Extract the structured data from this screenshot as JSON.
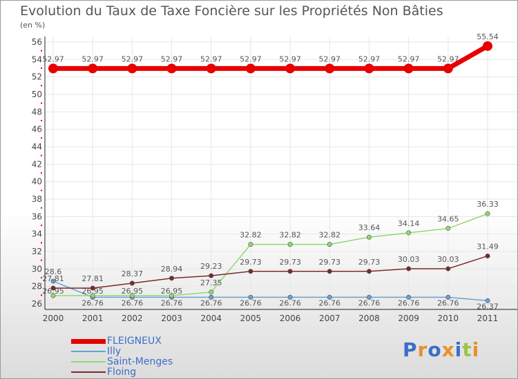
{
  "title": "Evolution du Taux de Taxe Foncière sur les Propriétés Non Bâties",
  "unit_label": "(en %)",
  "logo_text": "Proxiti",
  "chart_data": {
    "type": "line",
    "title": "Evolution du Taux de Taxe Foncière sur les Propriétés Non Bâties",
    "ylabel": "(en %)",
    "xlabel": "",
    "x": [
      "2000",
      "2001",
      "2002",
      "2003",
      "2004",
      "2005",
      "2006",
      "2007",
      "2008",
      "2009",
      "2010",
      "2011"
    ],
    "ylim": [
      26,
      56
    ],
    "yticks": [
      "26",
      "28",
      "30",
      "32",
      "34",
      "36",
      "38",
      "40",
      "42",
      "44",
      "46",
      "48",
      "50",
      "52",
      "54",
      "56"
    ],
    "series": [
      {
        "name": "FLEIGNEUX",
        "color": "#e80000",
        "values": [
          52.97,
          52.97,
          52.97,
          52.97,
          52.97,
          52.97,
          52.97,
          52.97,
          52.97,
          52.97,
          52.97,
          55.54
        ],
        "labels": [
          "52.97",
          "52.97",
          "52.97",
          "52.97",
          "52.97",
          "52.97",
          "52.97",
          "52.97",
          "52.97",
          "52.97",
          "52.97",
          "55.54"
        ]
      },
      {
        "name": "Illy",
        "color": "#6aa0d0",
        "values": [
          28.6,
          26.76,
          26.76,
          26.76,
          26.76,
          26.76,
          26.76,
          26.76,
          26.76,
          26.76,
          26.76,
          26.37
        ],
        "labels": [
          "28.6",
          "26.76",
          "26.76",
          "26.76",
          "26.76",
          "26.76",
          "26.76",
          "26.76",
          "26.76",
          "26.76",
          "26.76",
          "26.37"
        ]
      },
      {
        "name": "Saint-Menges",
        "color": "#90d870",
        "values": [
          26.95,
          26.95,
          26.95,
          26.95,
          27.35,
          32.82,
          32.82,
          32.82,
          33.64,
          34.14,
          34.65,
          36.33
        ],
        "labels": [
          "26.95",
          "26.95",
          "26.95",
          "26.95",
          "27.35",
          "32.82",
          "32.82",
          "32.82",
          "33.64",
          "34.14",
          "34.65",
          "36.33"
        ]
      },
      {
        "name": "Floing",
        "color": "#7a2a2a",
        "values": [
          27.81,
          27.81,
          28.37,
          28.94,
          29.23,
          29.73,
          29.73,
          29.73,
          29.73,
          30.03,
          30.03,
          31.49
        ],
        "labels": [
          "27.81",
          "27.81",
          "28.37",
          "28.94",
          "29.23",
          "29.73",
          "29.73",
          "29.73",
          "29.73",
          "30.03",
          "30.03",
          "31.49"
        ]
      }
    ]
  }
}
